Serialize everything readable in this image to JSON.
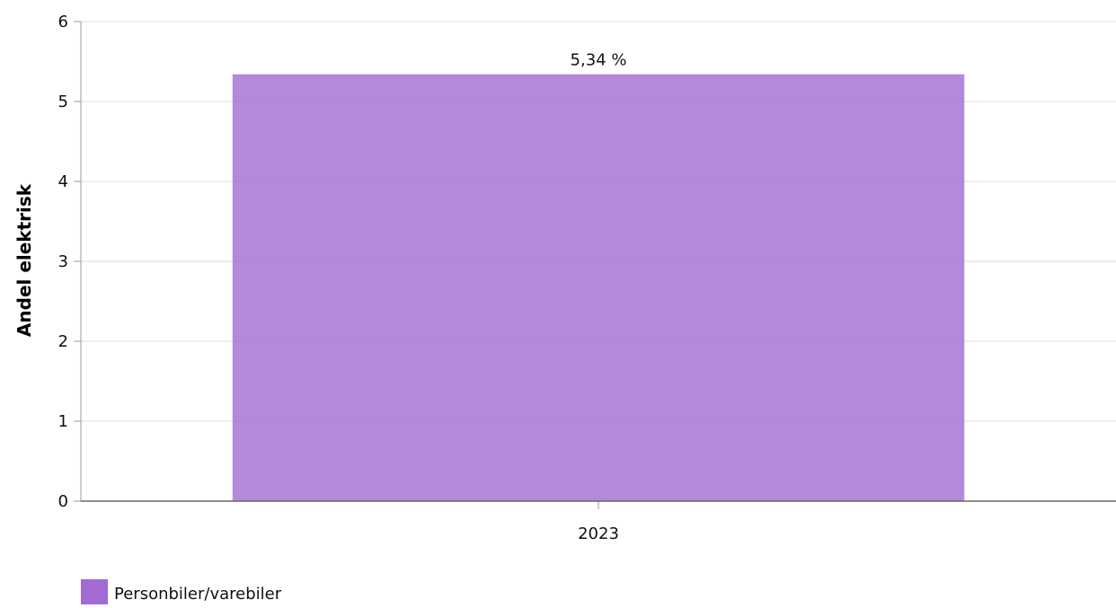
{
  "chart_data": {
    "type": "bar",
    "categories": [
      "2023"
    ],
    "series": [
      {
        "name": "Personbiler/varebiler",
        "values": [
          5.34
        ],
        "data_labels": [
          "5,34 %"
        ],
        "color": "#a16bd3"
      }
    ],
    "ylabel": "Andel elektrisk",
    "xlabel": "",
    "ylim": [
      0,
      6
    ],
    "yticks": [
      "0",
      "1",
      "2",
      "3",
      "4",
      "5",
      "6"
    ],
    "grid": true,
    "legend_position": "bottom-left"
  }
}
